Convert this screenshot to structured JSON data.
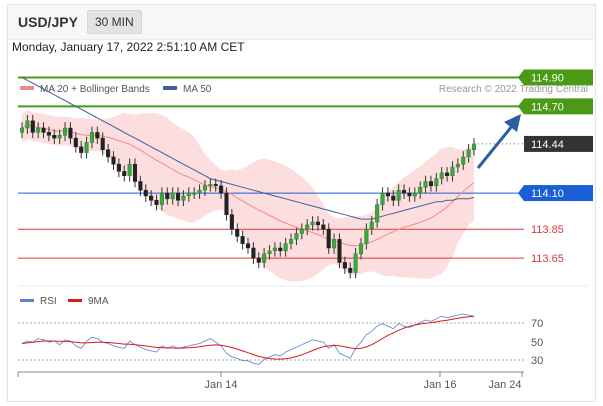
{
  "header": {
    "symbol": "USD/JPY",
    "timeframe": "30 MIN"
  },
  "datetime": "Monday, January 17, 2022 2:51:10 AM CET",
  "legend": [
    {
      "label": "MA 20 + Bollinger Bands",
      "color": "#f08a8a"
    },
    {
      "label": "MA 50",
      "color": "#3f5f9e"
    }
  ],
  "credit": "Research © 2022 Trading Central",
  "levels": [
    {
      "value": 114.9,
      "label": "114.90",
      "type": "resistance",
      "color": "#4a9a16"
    },
    {
      "value": 114.7,
      "label": "114.70",
      "type": "resistance",
      "color": "#4a9a16"
    },
    {
      "value": 114.44,
      "label": "114.44",
      "type": "last",
      "color": "#333333"
    },
    {
      "value": 114.1,
      "label": "114.10",
      "type": "pivot",
      "color": "#1a5fd6"
    },
    {
      "value": 113.85,
      "label": "113.85",
      "type": "support",
      "color": "#d93a3a"
    },
    {
      "value": 113.65,
      "label": "113.65",
      "type": "support",
      "color": "#d93a3a"
    }
  ],
  "x_labels": [
    "Jan 14",
    "Jan 16",
    "Jan 24"
  ],
  "rsi": {
    "legend": [
      {
        "label": "RSI",
        "color": "#5b82d1"
      },
      {
        "label": "9MA",
        "color": "#d61c1c"
      }
    ],
    "levels": [
      "70",
      "50",
      "30"
    ]
  },
  "chart_data": {
    "type": "candlestick",
    "price_ylim": [
      113.45,
      115.0
    ],
    "closes": [
      114.55,
      114.6,
      114.52,
      114.55,
      114.52,
      114.5,
      114.48,
      114.5,
      114.55,
      114.48,
      114.42,
      114.38,
      114.45,
      114.52,
      114.48,
      114.4,
      114.35,
      114.3,
      114.25,
      114.22,
      114.3,
      114.18,
      114.12,
      114.08,
      114.05,
      114.02,
      114.1,
      114.06,
      114.1,
      114.05,
      114.08,
      114.1,
      114.1,
      114.12,
      114.15,
      114.16,
      114.15,
      114.1,
      113.95,
      113.85,
      113.8,
      113.75,
      113.72,
      113.65,
      113.62,
      113.68,
      113.7,
      113.72,
      113.7,
      113.75,
      113.78,
      113.82,
      113.85,
      113.88,
      113.9,
      113.88,
      113.85,
      113.72,
      113.78,
      113.62,
      113.58,
      113.55,
      113.68,
      113.75,
      113.85,
      113.9,
      114.02,
      114.1,
      114.08,
      114.05,
      114.12,
      114.1,
      114.08,
      114.1,
      114.14,
      114.18,
      114.15,
      114.2,
      114.24,
      114.22,
      114.28,
      114.3,
      114.35,
      114.4,
      114.44
    ],
    "ma50": [
      114.9,
      114.88,
      114.86,
      114.84,
      114.82,
      114.8,
      114.78,
      114.76,
      114.74,
      114.72,
      114.7,
      114.68,
      114.66,
      114.64,
      114.62,
      114.6,
      114.58,
      114.56,
      114.54,
      114.52,
      114.5,
      114.48,
      114.46,
      114.44,
      114.42,
      114.4,
      114.38,
      114.36,
      114.34,
      114.32,
      114.3,
      114.28,
      114.26,
      114.24,
      114.22,
      114.2,
      114.19,
      114.18,
      114.17,
      114.16,
      114.15,
      114.14,
      114.13,
      114.12,
      114.11,
      114.1,
      114.09,
      114.08,
      114.07,
      114.06,
      114.05,
      114.04,
      114.03,
      114.02,
      114.01,
      114.0,
      113.99,
      113.98,
      113.97,
      113.96,
      113.95,
      113.94,
      113.93,
      113.92,
      113.92,
      113.92,
      113.93,
      113.94,
      113.95,
      113.96,
      113.97,
      113.98,
      113.99,
      114.0,
      114.01,
      114.02,
      114.03,
      114.04,
      114.04,
      114.05,
      114.05,
      114.06,
      114.06,
      114.06,
      114.07
    ],
    "rsi_ylim": [
      20,
      80
    ],
    "rsi": [
      48,
      50,
      49,
      52,
      51,
      49,
      50,
      47,
      51,
      50,
      46,
      44,
      50,
      53,
      52,
      49,
      48,
      46,
      45,
      44,
      50,
      47,
      45,
      43,
      42,
      41,
      46,
      44,
      46,
      44,
      45,
      46,
      47,
      48,
      50,
      52,
      49,
      46,
      40,
      37,
      36,
      34,
      34,
      32,
      31,
      35,
      37,
      39,
      38,
      41,
      43,
      45,
      47,
      49,
      51,
      50,
      49,
      44,
      47,
      40,
      38,
      36,
      44,
      49,
      55,
      58,
      62,
      64,
      62,
      60,
      64,
      62,
      61,
      63,
      65,
      67,
      66,
      68,
      70,
      69,
      70,
      71,
      72,
      71,
      70
    ],
    "rsi_ma9": [
      48,
      48.5,
      49,
      49.5,
      50,
      50,
      50,
      49.8,
      49.6,
      49.5,
      49,
      48.5,
      48.5,
      48.8,
      49,
      49,
      48.8,
      48.4,
      48,
      47.5,
      47.4,
      47,
      46.6,
      46,
      45.3,
      44.8,
      44.6,
      44.4,
      44.3,
      44.2,
      44.3,
      44.5,
      44.8,
      45.3,
      46,
      46.6,
      46.8,
      46.6,
      45.8,
      44.7,
      43.4,
      42,
      40.5,
      39,
      37.5,
      36.5,
      35.8,
      35.4,
      35.3,
      35.6,
      36.3,
      37.4,
      38.8,
      40.5,
      42.3,
      44,
      45.4,
      46,
      46.4,
      46,
      45.4,
      44.4,
      43.8,
      44,
      45.2,
      47,
      49.4,
      52,
      54.5,
      56.6,
      58.7,
      60.5,
      61.9,
      63,
      63.8,
      64.4,
      64.9,
      65.5,
      66.3,
      66.9,
      67.7,
      68.4,
      69.1,
      69.6,
      70.1
    ]
  }
}
